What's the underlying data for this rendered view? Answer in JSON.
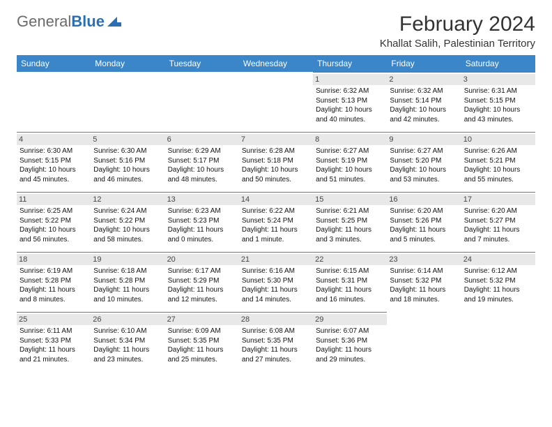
{
  "brand": {
    "text1": "General",
    "text2": "Blue",
    "color_gray": "#6b6b6b",
    "color_blue": "#2d6fb3"
  },
  "title": "February 2024",
  "location": "Khallat Salih, Palestinian Territory",
  "header_bg": "#3a86c8",
  "header_text_color": "#ffffff",
  "daynum_bg": "#e8e8e8",
  "daynum_color": "#444444",
  "cell_border": "#5a7a9a",
  "background": "#ffffff",
  "font_family": "Arial, Helvetica, sans-serif",
  "day_names": [
    "Sunday",
    "Monday",
    "Tuesday",
    "Wednesday",
    "Thursday",
    "Friday",
    "Saturday"
  ],
  "leading_blanks": 4,
  "days": [
    {
      "n": "1",
      "sunrise": "Sunrise: 6:32 AM",
      "sunset": "Sunset: 5:13 PM",
      "day1": "Daylight: 10 hours",
      "day2": "and 40 minutes."
    },
    {
      "n": "2",
      "sunrise": "Sunrise: 6:32 AM",
      "sunset": "Sunset: 5:14 PM",
      "day1": "Daylight: 10 hours",
      "day2": "and 42 minutes."
    },
    {
      "n": "3",
      "sunrise": "Sunrise: 6:31 AM",
      "sunset": "Sunset: 5:15 PM",
      "day1": "Daylight: 10 hours",
      "day2": "and 43 minutes."
    },
    {
      "n": "4",
      "sunrise": "Sunrise: 6:30 AM",
      "sunset": "Sunset: 5:15 PM",
      "day1": "Daylight: 10 hours",
      "day2": "and 45 minutes."
    },
    {
      "n": "5",
      "sunrise": "Sunrise: 6:30 AM",
      "sunset": "Sunset: 5:16 PM",
      "day1": "Daylight: 10 hours",
      "day2": "and 46 minutes."
    },
    {
      "n": "6",
      "sunrise": "Sunrise: 6:29 AM",
      "sunset": "Sunset: 5:17 PM",
      "day1": "Daylight: 10 hours",
      "day2": "and 48 minutes."
    },
    {
      "n": "7",
      "sunrise": "Sunrise: 6:28 AM",
      "sunset": "Sunset: 5:18 PM",
      "day1": "Daylight: 10 hours",
      "day2": "and 50 minutes."
    },
    {
      "n": "8",
      "sunrise": "Sunrise: 6:27 AM",
      "sunset": "Sunset: 5:19 PM",
      "day1": "Daylight: 10 hours",
      "day2": "and 51 minutes."
    },
    {
      "n": "9",
      "sunrise": "Sunrise: 6:27 AM",
      "sunset": "Sunset: 5:20 PM",
      "day1": "Daylight: 10 hours",
      "day2": "and 53 minutes."
    },
    {
      "n": "10",
      "sunrise": "Sunrise: 6:26 AM",
      "sunset": "Sunset: 5:21 PM",
      "day1": "Daylight: 10 hours",
      "day2": "and 55 minutes."
    },
    {
      "n": "11",
      "sunrise": "Sunrise: 6:25 AM",
      "sunset": "Sunset: 5:22 PM",
      "day1": "Daylight: 10 hours",
      "day2": "and 56 minutes."
    },
    {
      "n": "12",
      "sunrise": "Sunrise: 6:24 AM",
      "sunset": "Sunset: 5:22 PM",
      "day1": "Daylight: 10 hours",
      "day2": "and 58 minutes."
    },
    {
      "n": "13",
      "sunrise": "Sunrise: 6:23 AM",
      "sunset": "Sunset: 5:23 PM",
      "day1": "Daylight: 11 hours",
      "day2": "and 0 minutes."
    },
    {
      "n": "14",
      "sunrise": "Sunrise: 6:22 AM",
      "sunset": "Sunset: 5:24 PM",
      "day1": "Daylight: 11 hours",
      "day2": "and 1 minute."
    },
    {
      "n": "15",
      "sunrise": "Sunrise: 6:21 AM",
      "sunset": "Sunset: 5:25 PM",
      "day1": "Daylight: 11 hours",
      "day2": "and 3 minutes."
    },
    {
      "n": "16",
      "sunrise": "Sunrise: 6:20 AM",
      "sunset": "Sunset: 5:26 PM",
      "day1": "Daylight: 11 hours",
      "day2": "and 5 minutes."
    },
    {
      "n": "17",
      "sunrise": "Sunrise: 6:20 AM",
      "sunset": "Sunset: 5:27 PM",
      "day1": "Daylight: 11 hours",
      "day2": "and 7 minutes."
    },
    {
      "n": "18",
      "sunrise": "Sunrise: 6:19 AM",
      "sunset": "Sunset: 5:28 PM",
      "day1": "Daylight: 11 hours",
      "day2": "and 8 minutes."
    },
    {
      "n": "19",
      "sunrise": "Sunrise: 6:18 AM",
      "sunset": "Sunset: 5:28 PM",
      "day1": "Daylight: 11 hours",
      "day2": "and 10 minutes."
    },
    {
      "n": "20",
      "sunrise": "Sunrise: 6:17 AM",
      "sunset": "Sunset: 5:29 PM",
      "day1": "Daylight: 11 hours",
      "day2": "and 12 minutes."
    },
    {
      "n": "21",
      "sunrise": "Sunrise: 6:16 AM",
      "sunset": "Sunset: 5:30 PM",
      "day1": "Daylight: 11 hours",
      "day2": "and 14 minutes."
    },
    {
      "n": "22",
      "sunrise": "Sunrise: 6:15 AM",
      "sunset": "Sunset: 5:31 PM",
      "day1": "Daylight: 11 hours",
      "day2": "and 16 minutes."
    },
    {
      "n": "23",
      "sunrise": "Sunrise: 6:14 AM",
      "sunset": "Sunset: 5:32 PM",
      "day1": "Daylight: 11 hours",
      "day2": "and 18 minutes."
    },
    {
      "n": "24",
      "sunrise": "Sunrise: 6:12 AM",
      "sunset": "Sunset: 5:32 PM",
      "day1": "Daylight: 11 hours",
      "day2": "and 19 minutes."
    },
    {
      "n": "25",
      "sunrise": "Sunrise: 6:11 AM",
      "sunset": "Sunset: 5:33 PM",
      "day1": "Daylight: 11 hours",
      "day2": "and 21 minutes."
    },
    {
      "n": "26",
      "sunrise": "Sunrise: 6:10 AM",
      "sunset": "Sunset: 5:34 PM",
      "day1": "Daylight: 11 hours",
      "day2": "and 23 minutes."
    },
    {
      "n": "27",
      "sunrise": "Sunrise: 6:09 AM",
      "sunset": "Sunset: 5:35 PM",
      "day1": "Daylight: 11 hours",
      "day2": "and 25 minutes."
    },
    {
      "n": "28",
      "sunrise": "Sunrise: 6:08 AM",
      "sunset": "Sunset: 5:35 PM",
      "day1": "Daylight: 11 hours",
      "day2": "and 27 minutes."
    },
    {
      "n": "29",
      "sunrise": "Sunrise: 6:07 AM",
      "sunset": "Sunset: 5:36 PM",
      "day1": "Daylight: 11 hours",
      "day2": "and 29 minutes."
    }
  ]
}
